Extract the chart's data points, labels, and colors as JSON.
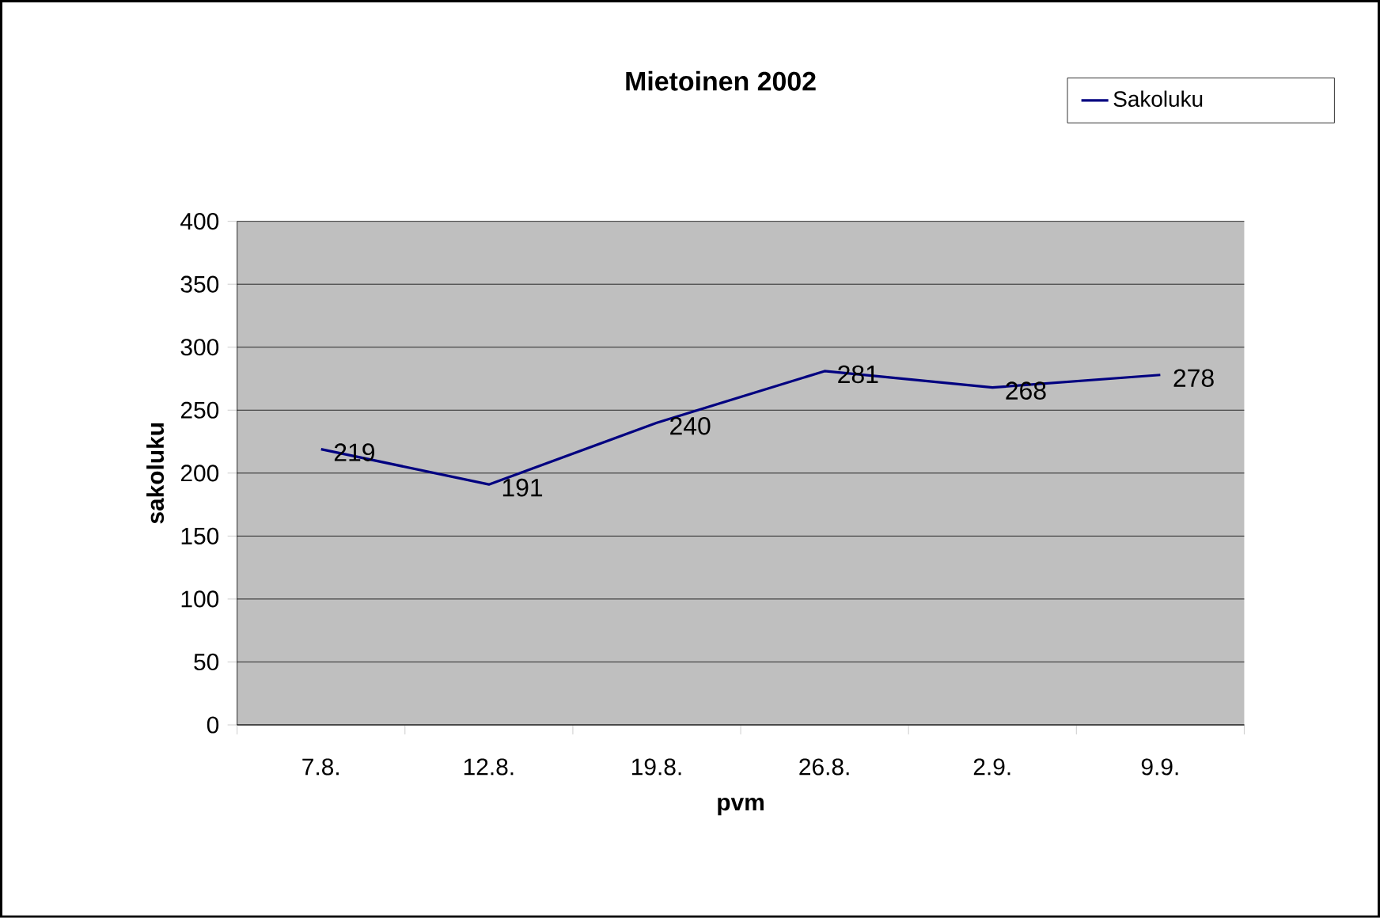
{
  "chart_data": {
    "type": "line",
    "title": "Mietoinen 2002",
    "xlabel": "pvm",
    "ylabel": "sakoluku",
    "categories": [
      "7.8.",
      "12.8.",
      "19.8.",
      "26.8.",
      "2.9.",
      "9.9."
    ],
    "series": [
      {
        "name": "Sakoluku",
        "color": "#000080",
        "values": [
          219,
          191,
          240,
          281,
          268,
          278
        ]
      }
    ],
    "ylim": [
      0,
      400
    ],
    "yticks": [
      0,
      50,
      100,
      150,
      200,
      250,
      300,
      350,
      400
    ],
    "grid": "y",
    "legend": "top right",
    "data_labels": true,
    "marker": "none",
    "line_style": "solid"
  }
}
